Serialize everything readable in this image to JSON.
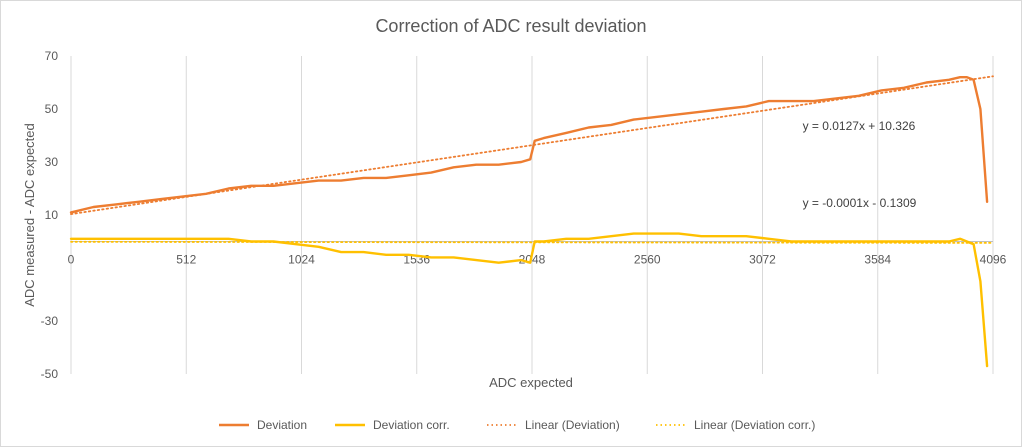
{
  "chart_data": {
    "type": "line",
    "title": "Correction of ADC result deviation",
    "xlabel": "ADC expected",
    "ylabel": "ADC measured - ADC expected",
    "xlim": [
      0,
      4096
    ],
    "ylim": [
      -50,
      70
    ],
    "x_ticks": [
      0,
      512,
      1024,
      1536,
      2048,
      2560,
      3072,
      3584,
      4096
    ],
    "x_tick_labels": [
      "0",
      "512",
      "1024",
      "1536",
      "2048",
      "2560",
      "3072",
      "3584",
      "4096"
    ],
    "y_ticks": [
      70,
      50,
      30,
      10,
      -10,
      -30,
      -50
    ],
    "y_tick_labels": [
      "70",
      "50",
      "30",
      "10",
      "",
      "-30",
      "-50"
    ],
    "grid": "vertical",
    "legend_position": "bottom",
    "series": [
      {
        "name": "Deviation",
        "color": "#ED7D31",
        "style": "solid",
        "x": [
          0,
          100,
          200,
          300,
          400,
          500,
          600,
          700,
          800,
          900,
          1000,
          1100,
          1200,
          1300,
          1400,
          1500,
          1600,
          1700,
          1800,
          1900,
          2000,
          2040,
          2060,
          2100,
          2200,
          2300,
          2400,
          2500,
          2600,
          2700,
          2800,
          2900,
          3000,
          3100,
          3200,
          3300,
          3400,
          3500,
          3600,
          3700,
          3800,
          3900,
          3950,
          3980,
          4010,
          4040,
          4070
        ],
        "values": [
          11,
          13,
          14,
          15,
          16,
          17,
          18,
          20,
          21,
          21,
          22,
          23,
          23,
          24,
          24,
          25,
          26,
          28,
          29,
          29,
          30,
          31,
          38,
          39,
          41,
          43,
          44,
          46,
          47,
          48,
          49,
          50,
          51,
          53,
          53,
          53,
          54,
          55,
          57,
          58,
          60,
          61,
          62,
          62,
          61,
          50,
          15
        ]
      },
      {
        "name": "Deviation corr.",
        "color": "#FFC000",
        "style": "solid",
        "x": [
          0,
          100,
          200,
          300,
          400,
          500,
          600,
          700,
          800,
          900,
          1000,
          1100,
          1200,
          1300,
          1400,
          1500,
          1600,
          1700,
          1800,
          1900,
          2000,
          2040,
          2060,
          2100,
          2200,
          2300,
          2400,
          2500,
          2600,
          2700,
          2800,
          2900,
          3000,
          3100,
          3200,
          3300,
          3400,
          3500,
          3600,
          3700,
          3800,
          3900,
          3950,
          3980,
          4010,
          4040,
          4070
        ],
        "values": [
          1,
          1,
          1,
          1,
          1,
          1,
          1,
          1,
          0,
          0,
          -1,
          -2,
          -4,
          -4,
          -5,
          -5,
          -6,
          -6,
          -7,
          -8,
          -7,
          -8,
          0,
          0,
          1,
          1,
          2,
          3,
          3,
          3,
          2,
          2,
          2,
          1,
          0,
          0,
          0,
          0,
          0,
          0,
          0,
          0,
          1,
          0,
          -1,
          -15,
          -47
        ]
      },
      {
        "name": "Linear (Deviation)",
        "color": "#ED7D31",
        "style": "dotted",
        "x": [
          0,
          4096
        ],
        "values": [
          10.33,
          62.34
        ]
      },
      {
        "name": "Linear (Deviation corr.)",
        "color": "#FFC000",
        "style": "dotted",
        "x": [
          0,
          4096
        ],
        "values": [
          -0.13,
          -0.54
        ]
      }
    ],
    "annotations": [
      {
        "text": "y = 0.0127x + 10.326",
        "x": 3250,
        "y": 42
      },
      {
        "text": "y = -0.0001x - 0.1309",
        "x": 3250,
        "y": 13
      }
    ]
  }
}
